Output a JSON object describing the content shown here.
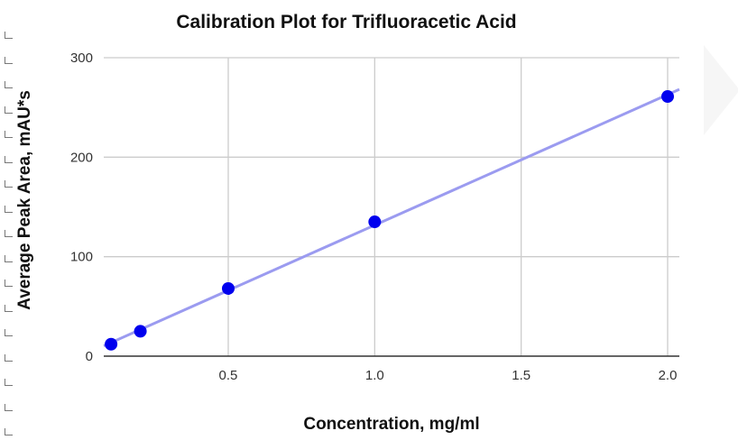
{
  "chart_data": {
    "type": "scatter",
    "title": "Calibration Plot for Trifluoracetic Acid",
    "xlabel": "Concentration, mg/ml",
    "ylabel": "Average Peak Area, mAU*s",
    "x": [
      0.1,
      0.2,
      0.5,
      1.0,
      2.0
    ],
    "y": [
      12,
      25,
      68,
      135,
      261
    ],
    "xlim": [
      0.075,
      2.04
    ],
    "ylim": [
      0,
      300
    ],
    "xticks": [
      "0.5",
      "1.0",
      "1.5",
      "2.0"
    ],
    "yticks": [
      "0",
      "100",
      "200",
      "300"
    ],
    "grid": true,
    "trendline": "linear",
    "legend": "none",
    "colors": {
      "points": "#0000ee",
      "trendline": "#9b9bf0",
      "grid": "#cccccc",
      "axis": "#333333"
    }
  }
}
